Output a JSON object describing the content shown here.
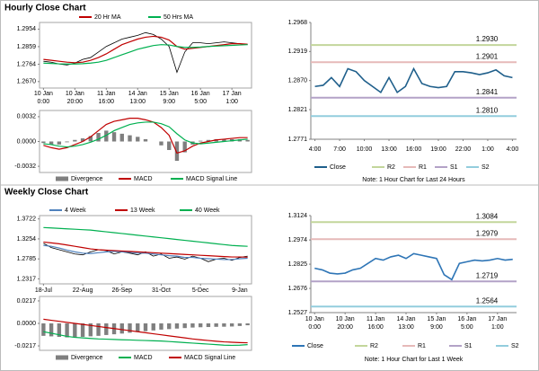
{
  "chart_data": [
    {
      "type": "line",
      "title": "Hourly Close Chart",
      "categories": [
        "10 Jan\n0:00",
        null,
        null,
        null,
        "10 Jan\n20:00",
        null,
        null,
        null,
        "11 Jan\n16:00",
        null,
        null,
        null,
        "14 Jan\n13:00",
        null,
        null,
        null,
        "15 Jan\n9:00",
        null,
        null,
        null,
        "16 Jan\n5:00",
        null,
        null,
        null,
        "17 Jan\n1:00",
        null,
        null
      ],
      "values": [
        1.278,
        1.2775,
        1.2765,
        1.276,
        1.277,
        1.279,
        1.28,
        1.283,
        1.286,
        1.288,
        1.29,
        1.291,
        1.292,
        1.2935,
        1.2925,
        1.29,
        1.286,
        1.272,
        1.283,
        1.288,
        1.288,
        1.2875,
        1.288,
        1.2885,
        1.288,
        1.2875,
        1.287
      ],
      "color": "#000000",
      "series": [
        {
          "name": "20 Hr MA",
          "color": "#c00000",
          "values": [
            1.279,
            1.2785,
            1.278,
            1.2775,
            1.2772,
            1.2775,
            1.2785,
            1.28,
            1.282,
            1.2845,
            1.287,
            1.2885,
            1.29,
            1.291,
            1.2915,
            1.291,
            1.2895,
            1.286,
            1.2845,
            1.285,
            1.2855,
            1.286,
            1.2865,
            1.287,
            1.2875,
            1.2875,
            1.2872
          ]
        },
        {
          "name": "50 Hrs MA",
          "color": "#00b050",
          "values": [
            1.277,
            1.2768,
            1.2766,
            1.2765,
            1.2765,
            1.2767,
            1.277,
            1.2775,
            1.2785,
            1.28,
            1.2815,
            1.283,
            1.2845,
            1.2855,
            1.2865,
            1.287,
            1.2868,
            1.286,
            1.2855,
            1.2855,
            1.2857,
            1.286,
            1.2862,
            1.2864,
            1.2866,
            1.2868,
            1.287
          ]
        }
      ],
      "ylim": [
        1.2635,
        1.299
      ],
      "yticks": [
        1.2954,
        1.2859,
        1.2764,
        {
          "value": 1.267,
          "label": "1.2670"
        }
      ],
      "grid": false
    },
    {
      "type": "combo",
      "series": [
        {
          "name": "Divergence",
          "kind": "bar",
          "color": "#7f7f7f",
          "values": [
            -0.0002,
            -0.0004,
            -0.0004,
            -0.0001,
            0.0002,
            0.0004,
            0.0007,
            0.0011,
            0.0014,
            0.0012,
            0.001,
            0.0008,
            0.0006,
            0.0003,
            0.0,
            -0.0005,
            -0.0011,
            -0.0025,
            -0.0014,
            -0.0004,
            0.0001,
            0.0002,
            0.0003,
            0.0003,
            0.0003,
            0.0003,
            0.0002
          ]
        },
        {
          "name": "MACD",
          "kind": "line",
          "color": "#c00000",
          "values": [
            -0.0005,
            -0.0008,
            -0.001,
            -0.0008,
            -0.0004,
            0.0,
            0.0006,
            0.0014,
            0.0022,
            0.0026,
            0.0028,
            0.003,
            0.003,
            0.0028,
            0.0025,
            0.0018,
            0.0008,
            -0.0015,
            -0.0012,
            -0.0006,
            -0.0002,
            0.0,
            0.0002,
            0.0003,
            0.0004,
            0.0005,
            0.0005
          ]
        },
        {
          "name": "MACD Signal Line",
          "kind": "line",
          "color": "#00b050",
          "values": [
            -0.0003,
            -0.0004,
            -0.0006,
            -0.0007,
            -0.0006,
            -0.0004,
            -0.0001,
            0.0003,
            0.0008,
            0.0014,
            0.0018,
            0.0022,
            0.0024,
            0.0025,
            0.0025,
            0.0023,
            0.0019,
            0.001,
            0.0002,
            -0.0002,
            -0.0003,
            -0.0002,
            -0.0001,
            0.0,
            0.0001,
            0.0002,
            0.0003
          ]
        }
      ],
      "ylim": [
        -0.004,
        0.004
      ],
      "yticks": [
        0.0032,
        {
          "value": 0,
          "label": "0.0000"
        },
        -0.0032
      ],
      "grid": false
    },
    {
      "type": "line",
      "categories": [
        "4:00",
        null,
        null,
        "7:00",
        null,
        null,
        "10:00",
        null,
        null,
        "13:00",
        null,
        null,
        "16:00",
        null,
        null,
        "19:00",
        null,
        null,
        "22:00",
        null,
        null,
        "1:00",
        null,
        null,
        "4:00"
      ],
      "series": [
        {
          "name": "Close",
          "color": "#1f5f8b",
          "values": [
            1.286,
            1.2862,
            1.2875,
            1.286,
            1.289,
            1.2885,
            1.287,
            1.286,
            1.285,
            1.2875,
            1.285,
            1.286,
            1.289,
            1.2865,
            1.286,
            1.2858,
            1.286,
            1.2885,
            1.2885,
            1.2883,
            1.288,
            1.2883,
            1.2888,
            1.2878,
            1.2875
          ]
        }
      ],
      "levels": {
        "names": [
          "R2",
          "R1",
          "S1",
          "S2"
        ],
        "values": [
          1.293,
          1.2901,
          1.2841,
          1.281
        ],
        "value_labels": [
          "1.2930",
          "1.2901",
          "1.2841",
          "1.2810"
        ],
        "colors": [
          "#c3d69b",
          "#e6b9b8",
          "#b3a2c7",
          "#93cddd"
        ]
      },
      "ylim": [
        1.2771,
        1.2968
      ],
      "yticks": [
        1.2968,
        1.2919,
        {
          "value": 1.287,
          "label": "1.2870"
        },
        1.2821,
        1.2771
      ],
      "grid": false,
      "note": "Note: 1 Hour Chart for Last 24 Hours"
    },
    {
      "type": "line",
      "title": "Weekly Close Chart",
      "categories": [
        "18-Jul",
        null,
        null,
        null,
        null,
        "22-Aug",
        null,
        null,
        null,
        null,
        "26-Sep",
        null,
        null,
        null,
        null,
        "31-Oct",
        null,
        null,
        null,
        null,
        "5-Dec",
        null,
        null,
        null,
        null,
        "9-Jan",
        null
      ],
      "values": [
        1.315,
        1.305,
        1.3,
        1.295,
        1.29,
        1.288,
        1.295,
        1.3,
        1.298,
        1.29,
        1.295,
        1.292,
        1.288,
        1.295,
        1.285,
        1.29,
        1.28,
        1.283,
        1.278,
        1.285,
        1.28,
        1.272,
        1.278,
        1.28,
        1.275,
        1.282,
        1.285
      ],
      "color": "#000000",
      "series": [
        {
          "name": "4 Week",
          "color": "#4f81bd",
          "values": [
            1.31,
            1.308,
            1.304,
            1.299,
            1.295,
            1.292,
            1.291,
            1.293,
            1.295,
            1.296,
            1.295,
            1.294,
            1.292,
            1.292,
            1.29,
            1.288,
            1.286,
            1.285,
            1.282,
            1.282,
            1.28,
            1.279,
            1.278,
            1.277,
            1.277,
            1.279,
            1.28
          ]
        },
        {
          "name": "13 Week",
          "color": "#c00000",
          "values": [
            1.318,
            1.316,
            1.314,
            1.311,
            1.308,
            1.305,
            1.302,
            1.3,
            1.299,
            1.298,
            1.297,
            1.296,
            1.295,
            1.294,
            1.293,
            1.292,
            1.291,
            1.29,
            1.289,
            1.288,
            1.287,
            1.286,
            1.285,
            1.284,
            1.283,
            1.283,
            1.2825
          ]
        },
        {
          "name": "40 Week",
          "color": "#00b050",
          "values": [
            1.352,
            1.351,
            1.35,
            1.349,
            1.348,
            1.347,
            1.346,
            1.344,
            1.342,
            1.34,
            1.338,
            1.336,
            1.334,
            1.332,
            1.33,
            1.328,
            1.326,
            1.324,
            1.322,
            1.32,
            1.318,
            1.316,
            1.314,
            1.312,
            1.31,
            1.309,
            1.308
          ]
        }
      ],
      "ylim": [
        1.22,
        1.38
      ],
      "yticks": [
        1.3722,
        1.3254,
        1.2785,
        1.2317
      ],
      "grid": false
    },
    {
      "type": "combo",
      "series": [
        {
          "name": "Divergence",
          "kind": "bar",
          "color": "#7f7f7f",
          "values": [
            -0.012,
            -0.0125,
            -0.013,
            -0.0135,
            -0.0135,
            -0.013,
            -0.0125,
            -0.012,
            -0.0112,
            -0.0105,
            -0.0098,
            -0.009,
            -0.0083,
            -0.0075,
            -0.0068,
            -0.006,
            -0.0055,
            -0.005,
            -0.0045,
            -0.004,
            -0.0037,
            -0.0035,
            -0.0033,
            -0.0032,
            -0.003,
            -0.0025,
            -0.0018
          ]
        },
        {
          "name": "MACD",
          "kind": "line",
          "color": "#00b050",
          "values": [
            -0.008,
            -0.0095,
            -0.011,
            -0.0125,
            -0.0135,
            -0.014,
            -0.0145,
            -0.015,
            -0.0152,
            -0.0155,
            -0.0158,
            -0.016,
            -0.0163,
            -0.0165,
            -0.0168,
            -0.017,
            -0.0175,
            -0.018,
            -0.0185,
            -0.019,
            -0.0195,
            -0.02,
            -0.0205,
            -0.021,
            -0.0212,
            -0.021,
            -0.0205
          ]
        },
        {
          "name": "MACD Signal Line",
          "kind": "line",
          "color": "#c00000",
          "values": [
            0.004,
            0.003,
            0.002,
            0.001,
            0.0,
            -0.001,
            -0.002,
            -0.003,
            -0.004,
            -0.005,
            -0.006,
            -0.007,
            -0.008,
            -0.009,
            -0.01,
            -0.011,
            -0.012,
            -0.013,
            -0.014,
            -0.015,
            -0.0158,
            -0.0165,
            -0.0172,
            -0.0178,
            -0.0182,
            -0.0185,
            -0.0187
          ]
        }
      ],
      "ylim": [
        -0.026,
        0.026
      ],
      "yticks": [
        0.0217,
        {
          "value": 0,
          "label": "0.0000"
        },
        -0.0217
      ],
      "grid": false
    },
    {
      "type": "line",
      "categories": [
        "10 Jan\n0:00",
        null,
        null,
        null,
        "10 Jan\n20:00",
        null,
        null,
        null,
        "11 Jan\n16:00",
        null,
        null,
        null,
        "14 Jan\n13:00",
        null,
        null,
        null,
        "15 Jan\n9:00",
        null,
        null,
        null,
        "16 Jan\n5:00",
        null,
        null,
        null,
        "17 Jan\n1:00",
        null,
        null
      ],
      "series": [
        {
          "name": "Close",
          "color": "#2e75b6",
          "values": [
            1.28,
            1.279,
            1.277,
            1.2765,
            1.277,
            1.279,
            1.28,
            1.283,
            1.286,
            1.285,
            1.287,
            1.288,
            1.286,
            1.289,
            1.288,
            1.287,
            1.286,
            1.276,
            1.273,
            1.283,
            1.284,
            1.285,
            1.2845,
            1.285,
            1.286,
            1.285,
            1.2855
          ]
        }
      ],
      "levels": {
        "names": [
          "R2",
          "R1",
          "S1",
          "S2"
        ],
        "values": [
          1.3084,
          1.2979,
          1.2719,
          1.2564
        ],
        "value_labels": [
          "1.3084",
          "1.2979",
          "1.2719",
          "1.2564"
        ],
        "colors": [
          "#c3d69b",
          "#e6b9b8",
          "#b3a2c7",
          "#93cddd"
        ]
      },
      "ylim": [
        1.2527,
        1.3124
      ],
      "yticks": [
        1.3124,
        1.2974,
        1.2825,
        1.2676,
        1.2527
      ],
      "grid": false,
      "note": "Note: 1 Hour Chart for Last 1 Week"
    }
  ]
}
